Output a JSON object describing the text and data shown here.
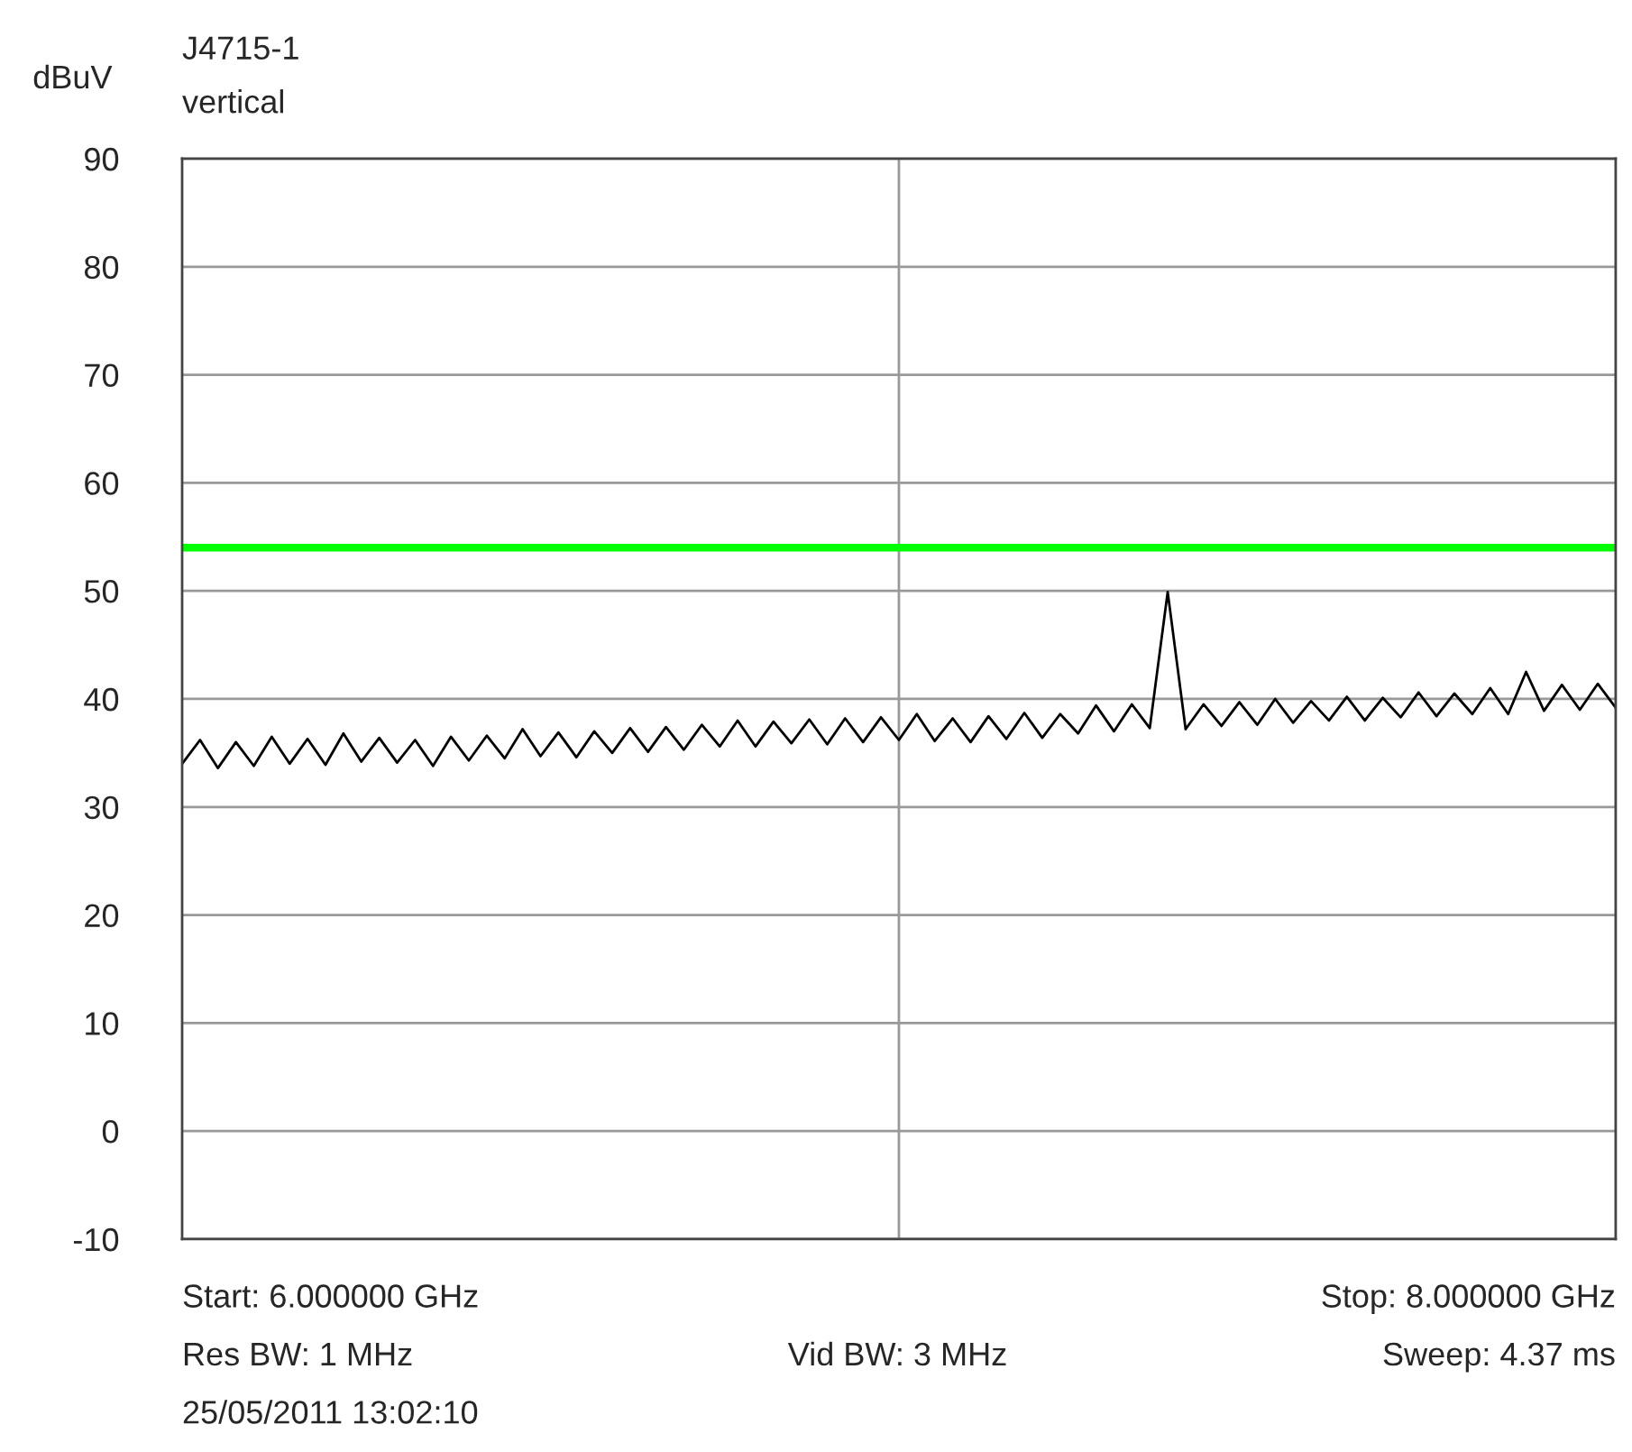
{
  "chart_data": {
    "type": "line",
    "title": "J4715-1",
    "subtitle": "vertical",
    "ylabel": "dBuV",
    "annotations": [
      "Start: 6.000000 GHz",
      "Stop: 8.000000 GHz",
      "Res BW: 1 MHz",
      "Vid BW: 3 MHz",
      "Sweep: 4.37 ms",
      "25/05/2011 13:02:10"
    ],
    "categories": [
      null,
      null,
      null,
      null,
      null,
      null,
      null,
      null,
      null,
      null,
      null,
      null,
      null,
      null,
      null,
      null,
      null,
      null,
      null,
      null,
      null,
      null,
      null,
      null,
      null,
      null,
      null,
      null,
      null,
      null,
      null,
      null,
      null,
      null,
      null,
      null,
      null,
      null,
      null,
      null,
      null,
      null,
      null,
      null,
      null,
      null,
      null,
      null,
      null,
      null,
      null,
      null,
      null,
      null,
      null,
      null,
      null,
      null,
      null,
      null,
      null,
      null,
      null,
      null,
      null,
      null,
      null,
      null,
      null,
      null,
      null,
      null,
      null,
      null,
      null,
      null,
      null,
      null,
      null,
      null,
      null
    ],
    "series": [
      {
        "color": "#000000",
        "values": [
          34.0,
          36.2,
          33.6,
          36.0,
          33.8,
          36.5,
          34.0,
          36.3,
          33.9,
          36.8,
          34.2,
          36.4,
          34.1,
          36.2,
          33.8,
          36.5,
          34.3,
          36.6,
          34.5,
          37.2,
          34.7,
          36.9,
          34.6,
          37.0,
          35.0,
          37.3,
          35.1,
          37.4,
          35.3,
          37.6,
          35.6,
          38.0,
          35.6,
          37.9,
          35.9,
          38.1,
          35.8,
          38.2,
          36.0,
          38.3,
          36.2,
          38.6,
          36.1,
          38.2,
          36.0,
          38.4,
          36.3,
          38.7,
          36.4,
          38.6,
          36.8,
          39.4,
          37.0,
          39.5,
          37.3,
          49.9,
          37.2,
          39.5,
          37.5,
          39.7,
          37.6,
          40.0,
          37.8,
          39.8,
          38.0,
          40.2,
          38.0,
          40.1,
          38.3,
          40.6,
          38.4,
          40.5,
          38.6,
          41.0,
          38.6,
          42.5,
          38.9,
          41.3,
          39.0,
          41.4,
          39.2
        ]
      }
    ],
    "ylim": [
      -10,
      90
    ],
    "yticks": [
      -10,
      0,
      10,
      20,
      30,
      40,
      50,
      60,
      70,
      80,
      90
    ],
    "ref_lines": [
      {
        "axis": "y",
        "value": 54,
        "color": "#00ff00",
        "line_style": "solid"
      }
    ],
    "grid": true,
    "tick_labels": "y",
    "marker": "none",
    "line_style": "solid"
  }
}
